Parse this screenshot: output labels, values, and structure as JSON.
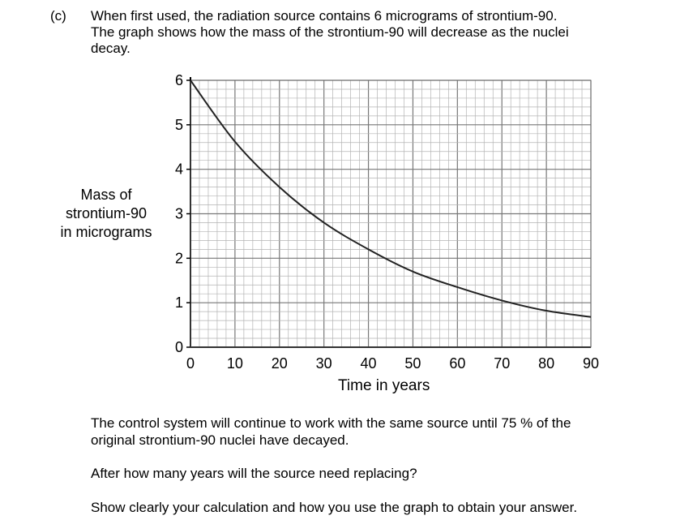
{
  "question": {
    "label": "(c)",
    "intro_lines": [
      "When first used, the radiation source contains 6 micrograms of strontium-90.",
      "The graph shows how the mass of the strontium-90 will decrease as the nuclei",
      "decay."
    ],
    "follow_lines": [
      "The control system will continue to work with the same source until 75 % of the",
      "original strontium-90 nuclei have decayed."
    ],
    "prompt": "After how many years will the source need replacing?",
    "instruction": "Show clearly your calculation and how you use the graph to obtain your answer."
  },
  "chart_data": {
    "type": "line",
    "title": "",
    "xlabel": "Time in years",
    "ylabel_lines": [
      "Mass of",
      "strontium-90",
      "in micrograms"
    ],
    "xlim": [
      0,
      90
    ],
    "ylim": [
      0,
      6
    ],
    "x_ticks": [
      "0",
      "10",
      "20",
      "30",
      "40",
      "50",
      "60",
      "70",
      "80",
      "90"
    ],
    "y_ticks": [
      "0",
      "1",
      "2",
      "3",
      "4",
      "5",
      "6"
    ],
    "grid": true,
    "minor_grid_per_major_x": 5,
    "minor_grid_per_major_y": 5,
    "series": [
      {
        "x": [
          0,
          10,
          20,
          30,
          40,
          50,
          60,
          70,
          80,
          90
        ],
        "y": [
          6.0,
          4.62,
          3.6,
          2.8,
          2.2,
          1.7,
          1.35,
          1.05,
          0.82,
          0.68
        ]
      }
    ]
  }
}
